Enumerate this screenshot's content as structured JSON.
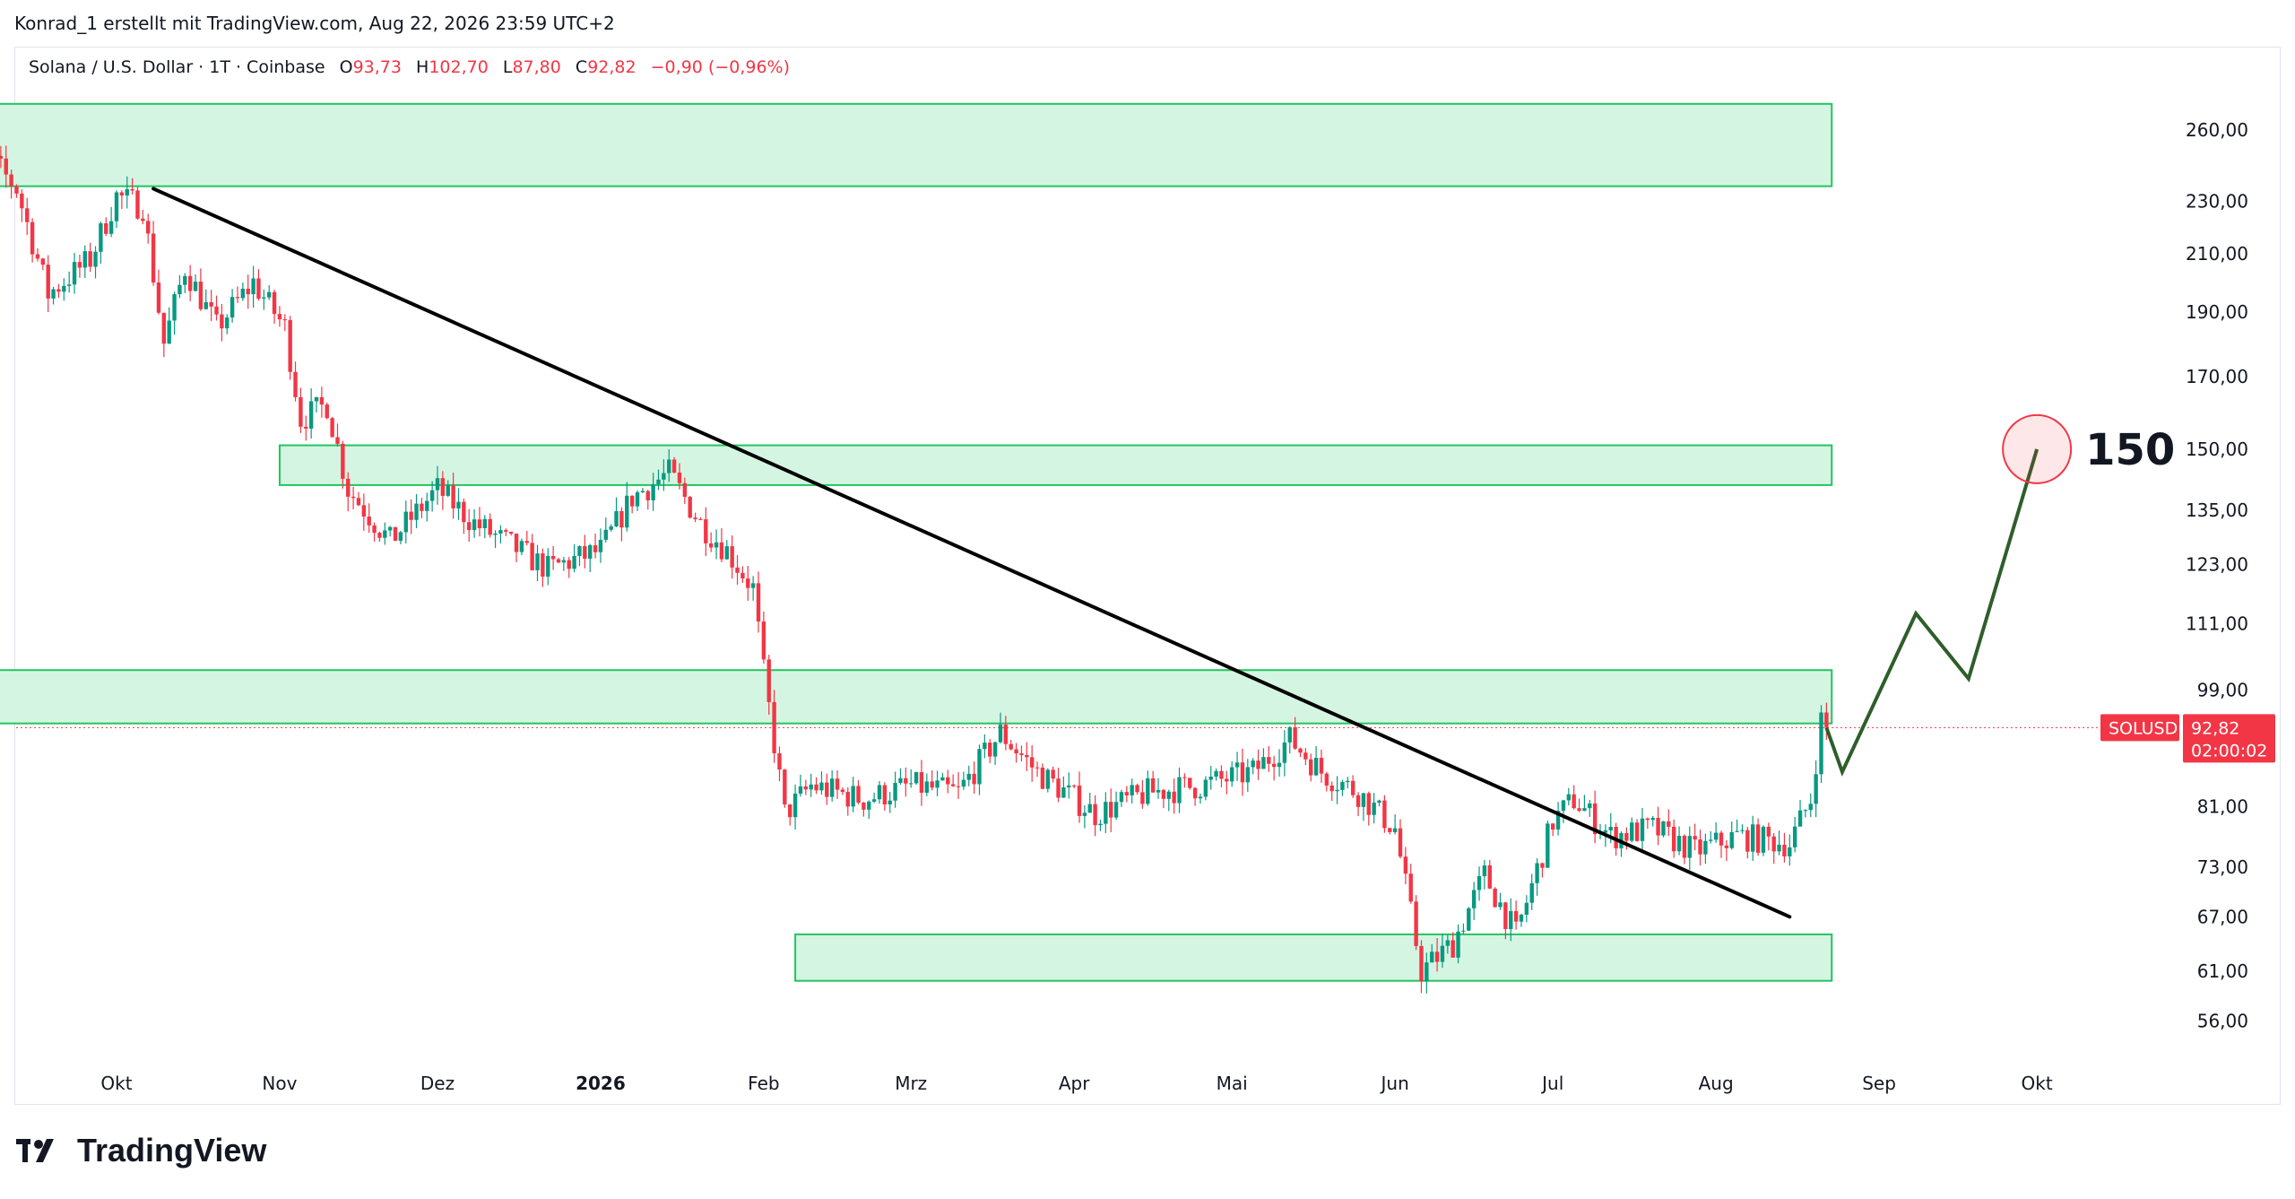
{
  "header": {
    "attribution": "Konrad_1 erstellt mit TradingView.com, Aug 22, 2026 23:59 UTC+2"
  },
  "legend": {
    "instrument": "Solana / U.S. Dollar · 1T · Coinbase",
    "open_label": "O",
    "open_value": "93,73",
    "high_label": "H",
    "high_value": "102,70",
    "low_label": "L",
    "low_value": "87,80",
    "close_label": "C",
    "close_value": "92,82",
    "change": "−0,90 (−0,96%)"
  },
  "price_badge": {
    "symbol": "SOLUSD",
    "price": "92,82",
    "countdown": "02:00:02"
  },
  "annotation": {
    "target_label": "150"
  },
  "brand": {
    "name": "TradingView"
  },
  "colors": {
    "up": "#089981",
    "down": "#f23645",
    "zone_fill": "#d5f5e3",
    "zone_border": "#22c55e",
    "trendline": "#000000",
    "projection": "#2e5e2a",
    "badge": "#f23645"
  },
  "chart_data": {
    "type": "candlestick",
    "scale": "log",
    "x_axis_ticks": [
      {
        "label": "Okt",
        "date": "2025-10-01"
      },
      {
        "label": "Nov",
        "date": "2025-11-01"
      },
      {
        "label": "Dez",
        "date": "2025-12-01"
      },
      {
        "label": "2026",
        "date": "2026-01-01",
        "bold": true
      },
      {
        "label": "Feb",
        "date": "2026-02-01"
      },
      {
        "label": "Mrz",
        "date": "2026-03-01"
      },
      {
        "label": "Apr",
        "date": "2026-04-01"
      },
      {
        "label": "Mai",
        "date": "2026-05-01"
      },
      {
        "label": "Jun",
        "date": "2026-06-01"
      },
      {
        "label": "Jul",
        "date": "2026-07-01"
      },
      {
        "label": "Aug",
        "date": "2026-08-01"
      },
      {
        "label": "Sep",
        "date": "2026-09-01"
      },
      {
        "label": "Okt",
        "date": "2026-10-01"
      }
    ],
    "y_axis_ticks": [
      {
        "label": "260,00",
        "value": 260
      },
      {
        "label": "230,00",
        "value": 230
      },
      {
        "label": "210,00",
        "value": 210
      },
      {
        "label": "190,00",
        "value": 190
      },
      {
        "label": "170,00",
        "value": 170
      },
      {
        "label": "150,00",
        "value": 150
      },
      {
        "label": "135,00",
        "value": 135
      },
      {
        "label": "123,00",
        "value": 123
      },
      {
        "label": "111,00",
        "value": 111
      },
      {
        "label": "99,00",
        "value": 99
      },
      {
        "label": "81,00",
        "value": 81
      },
      {
        "label": "73,00",
        "value": 73
      },
      {
        "label": "67,00",
        "value": 67
      },
      {
        "label": "61,00",
        "value": 61
      },
      {
        "label": "56,00",
        "value": 56
      }
    ],
    "last_price": 92.82,
    "price_path": [
      {
        "date": "2025-09-01",
        "price": 236
      },
      {
        "date": "2025-09-06",
        "price": 250
      },
      {
        "date": "2025-09-12",
        "price": 235
      },
      {
        "date": "2025-09-18",
        "price": 196
      },
      {
        "date": "2025-09-26",
        "price": 208
      },
      {
        "date": "2025-10-01",
        "price": 232
      },
      {
        "date": "2025-10-06",
        "price": 228
      },
      {
        "date": "2025-10-10",
        "price": 180
      },
      {
        "date": "2025-10-14",
        "price": 205
      },
      {
        "date": "2025-10-20",
        "price": 185
      },
      {
        "date": "2025-10-27",
        "price": 200
      },
      {
        "date": "2025-11-02",
        "price": 185
      },
      {
        "date": "2025-11-05",
        "price": 158
      },
      {
        "date": "2025-11-10",
        "price": 162
      },
      {
        "date": "2025-11-14",
        "price": 140
      },
      {
        "date": "2025-11-22",
        "price": 128
      },
      {
        "date": "2025-12-01",
        "price": 140
      },
      {
        "date": "2025-12-08",
        "price": 132
      },
      {
        "date": "2025-12-15",
        "price": 127
      },
      {
        "date": "2025-12-22",
        "price": 122
      },
      {
        "date": "2026-01-01",
        "price": 126
      },
      {
        "date": "2026-01-07",
        "price": 138
      },
      {
        "date": "2026-01-14",
        "price": 144
      },
      {
        "date": "2026-01-20",
        "price": 132
      },
      {
        "date": "2026-01-25",
        "price": 126
      },
      {
        "date": "2026-01-30",
        "price": 118
      },
      {
        "date": "2026-02-01",
        "price": 102
      },
      {
        "date": "2026-02-05",
        "price": 80
      },
      {
        "date": "2026-02-10",
        "price": 84
      },
      {
        "date": "2026-02-20",
        "price": 82
      },
      {
        "date": "2026-03-01",
        "price": 84
      },
      {
        "date": "2026-03-10",
        "price": 83
      },
      {
        "date": "2026-03-18",
        "price": 92
      },
      {
        "date": "2026-03-25",
        "price": 86
      },
      {
        "date": "2026-04-05",
        "price": 80
      },
      {
        "date": "2026-04-15",
        "price": 83
      },
      {
        "date": "2026-04-25",
        "price": 84
      },
      {
        "date": "2026-05-05",
        "price": 86
      },
      {
        "date": "2026-05-12",
        "price": 91
      },
      {
        "date": "2026-05-18",
        "price": 86
      },
      {
        "date": "2026-05-25",
        "price": 83
      },
      {
        "date": "2026-06-01",
        "price": 78
      },
      {
        "date": "2026-06-06",
        "price": 61
      },
      {
        "date": "2026-06-12",
        "price": 64
      },
      {
        "date": "2026-06-18",
        "price": 72
      },
      {
        "date": "2026-06-24",
        "price": 65
      },
      {
        "date": "2026-07-01",
        "price": 79
      },
      {
        "date": "2026-07-05",
        "price": 82
      },
      {
        "date": "2026-07-12",
        "price": 77
      },
      {
        "date": "2026-07-20",
        "price": 78
      },
      {
        "date": "2026-07-28",
        "price": 75
      },
      {
        "date": "2026-08-05",
        "price": 77
      },
      {
        "date": "2026-08-15",
        "price": 76
      },
      {
        "date": "2026-08-19",
        "price": 82
      },
      {
        "date": "2026-08-21",
        "price": 94
      },
      {
        "date": "2026-08-22",
        "price": 92.82
      }
    ],
    "zones": [
      {
        "start": "2025-09-01",
        "end": "2026-08-23",
        "low": 236,
        "high": 272
      },
      {
        "start": "2025-11-01",
        "end": "2026-08-23",
        "low": 141,
        "high": 151
      },
      {
        "start": "2025-09-01",
        "end": "2026-08-23",
        "low": 93.5,
        "high": 102.5
      },
      {
        "start": "2026-02-07",
        "end": "2026-08-23",
        "low": 60,
        "high": 65
      }
    ],
    "trendlines": [
      {
        "start": {
          "date": "2025-10-08",
          "price": 235
        },
        "end": {
          "date": "2026-08-15",
          "price": 67
        }
      }
    ],
    "projection": [
      {
        "date": "2026-08-22",
        "price": 92.82
      },
      {
        "date": "2026-08-25",
        "price": 86
      },
      {
        "date": "2026-09-08",
        "price": 113
      },
      {
        "date": "2026-09-18",
        "price": 101
      },
      {
        "date": "2026-10-01",
        "price": 150
      }
    ],
    "target_marker": {
      "date": "2026-10-01",
      "price": 150
    }
  }
}
